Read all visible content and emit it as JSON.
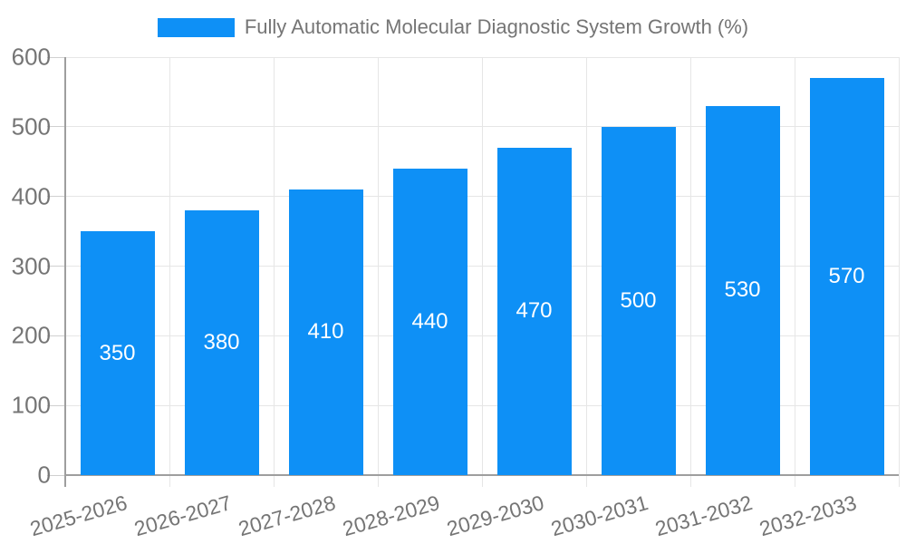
{
  "chart_data": {
    "type": "bar",
    "title": "",
    "xlabel": "",
    "ylabel": "",
    "categories": [
      "2025-2026",
      "2026-2027",
      "2027-2028",
      "2028-2029",
      "2029-2030",
      "2030-2031",
      "2031-2032",
      "2032-2033"
    ],
    "series": [
      {
        "name": "Fully Automatic Molecular Diagnostic System Growth (%)",
        "values": [
          350,
          380,
          410,
          440,
          470,
          500,
          530,
          570
        ]
      }
    ],
    "ylim": [
      0,
      600
    ],
    "yticks": [
      0,
      100,
      200,
      300,
      400,
      500,
      600
    ],
    "grid": true,
    "legend_position": "top",
    "bar_value_labels": true,
    "x_label_rotation_deg": -16
  },
  "style": {
    "bar_color": "#0e90f6",
    "value_label_color": "#ffffff",
    "axis_text_color": "#757575",
    "grid_line_color": "#e6e6e6",
    "tick_line_color": "#d0d0d0",
    "axis_line_color": "#9e9e9e",
    "background_color": "#ffffff"
  }
}
